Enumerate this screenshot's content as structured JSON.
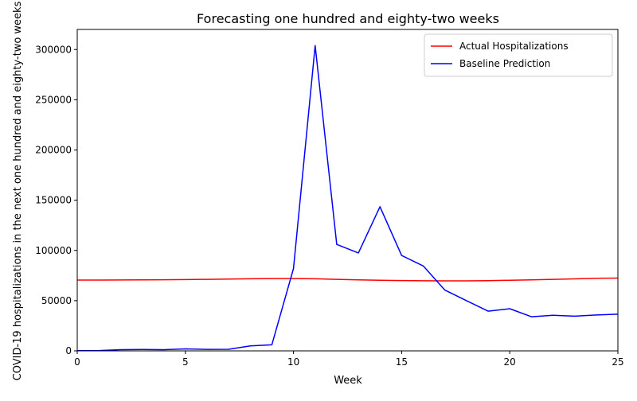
{
  "chart_data": {
    "type": "line",
    "title": "Forecasting one hundred and eighty-two weeks",
    "xlabel": "Week",
    "ylabel": "COVID-19 hospitalizations in the next one hundred and eighty-two weeks",
    "xlim": [
      0,
      25
    ],
    "ylim": [
      0,
      320000
    ],
    "xticks": [
      0,
      5,
      10,
      15,
      20,
      25
    ],
    "yticks": [
      0,
      50000,
      100000,
      150000,
      200000,
      250000,
      300000
    ],
    "grid": false,
    "legend_position": "top-right",
    "series": [
      {
        "name": "Actual Hospitalizations",
        "color": "#ff0000",
        "x": [
          0,
          1,
          2,
          3,
          4,
          5,
          6,
          7,
          8,
          9,
          10,
          11,
          12,
          13,
          14,
          15,
          16,
          17,
          18,
          19,
          20,
          21,
          22,
          23,
          24,
          25
        ],
        "y": [
          70500,
          70500,
          70600,
          70700,
          70800,
          71000,
          71200,
          71500,
          71800,
          72000,
          72000,
          71800,
          71200,
          70700,
          70300,
          70000,
          69800,
          69700,
          69700,
          69900,
          70300,
          70700,
          71200,
          71700,
          72200,
          72500
        ]
      },
      {
        "name": "Baseline Prediction",
        "color": "#0000ff",
        "x": [
          0,
          1,
          2,
          3,
          4,
          5,
          6,
          7,
          8,
          9,
          10,
          11,
          12,
          13,
          14,
          15,
          16,
          17,
          18,
          19,
          20,
          21,
          22,
          23,
          24,
          25
        ],
        "y": [
          200,
          300,
          1200,
          1400,
          1200,
          2000,
          1500,
          1600,
          5000,
          6000,
          82000,
          304000,
          106000,
          97500,
          143500,
          95000,
          84500,
          60500,
          50000,
          39500,
          42000,
          34000,
          35500,
          34500,
          35700,
          36500
        ]
      }
    ]
  }
}
